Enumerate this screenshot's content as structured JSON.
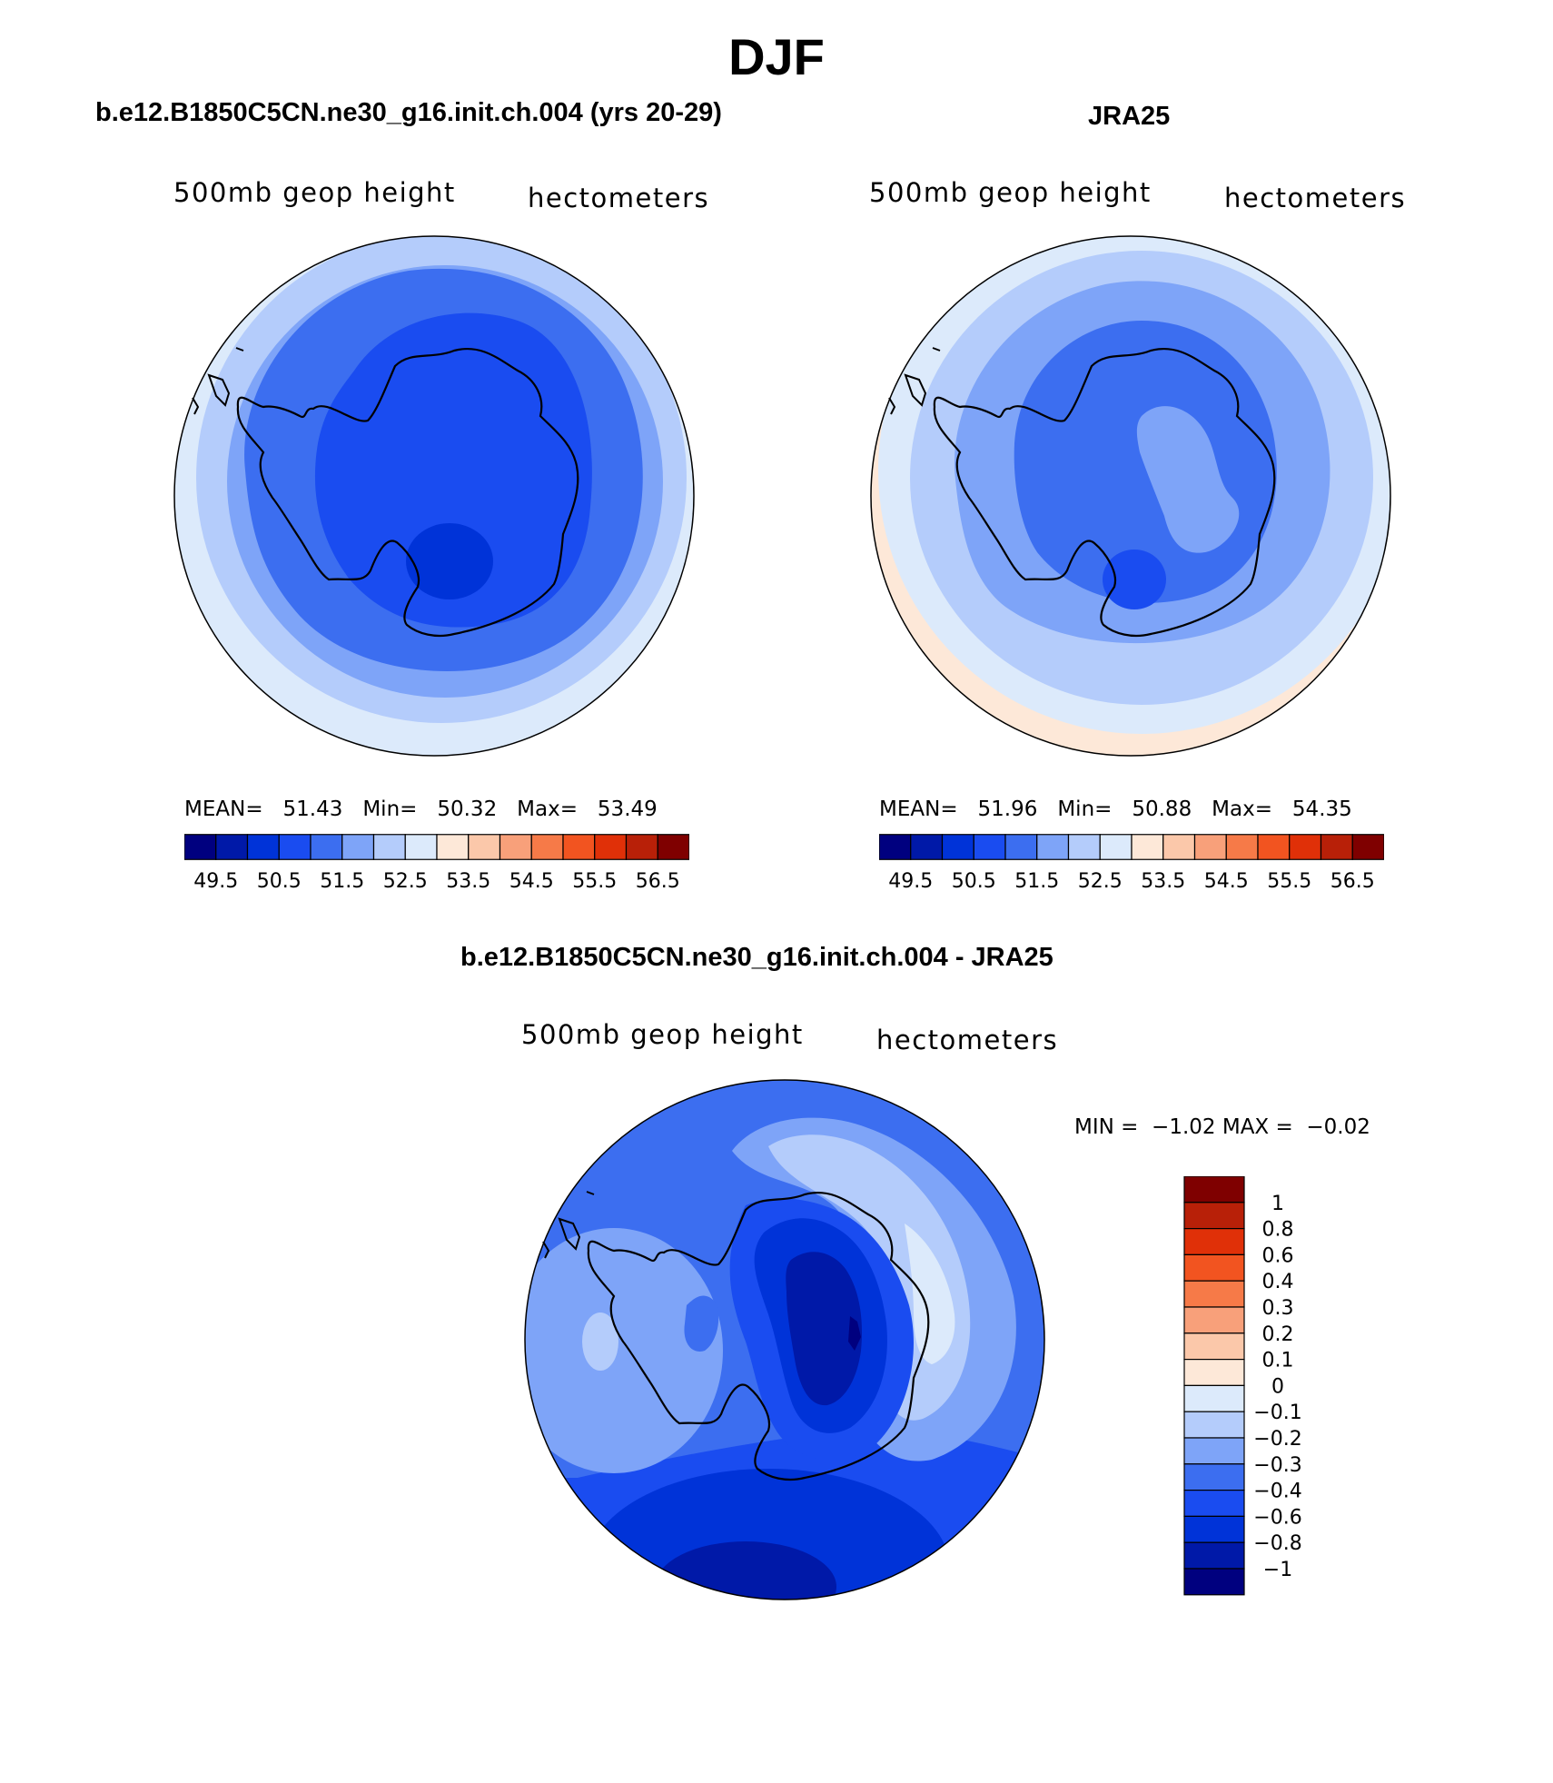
{
  "title": "DJF",
  "panels": [
    {
      "title": "b.e12.B1850C5CN.ne30_g16.init.ch.004 (yrs 20-29)",
      "variable": "500mb geop height",
      "units": "hectometers",
      "stats": {
        "mean_label": "MEAN=",
        "mean": "51.43",
        "min_label": "Min=",
        "min": "50.32",
        "max_label": "Max=",
        "max": "53.49"
      }
    },
    {
      "title": "JRA25",
      "variable": "500mb geop height",
      "units": "hectometers",
      "stats": {
        "mean_label": "MEAN=",
        "mean": "51.96",
        "min_label": "Min=",
        "min": "50.88",
        "max_label": "Max=",
        "max": "54.35"
      }
    },
    {
      "title": "b.e12.B1850C5CN.ne30_g16.init.ch.004 - JRA25",
      "variable": "500mb geop height",
      "units": "hectometers",
      "stats": {
        "min_label": "MIN =",
        "min": "−1.02",
        "max_label": "MAX =",
        "max": "−0.02"
      }
    }
  ],
  "colorbar_abs": {
    "ticks": [
      "49.5",
      "50.5",
      "51.5",
      "52.5",
      "53.5",
      "54.5",
      "55.5",
      "56.5"
    ],
    "colors": [
      "#00007f",
      "#0019a8",
      "#0033d8",
      "#1a4cf0",
      "#3c6ef0",
      "#7ea4f8",
      "#b4ccfb",
      "#dceafb",
      "#fde8d8",
      "#fbc8aa",
      "#f8a07a",
      "#f67a48",
      "#f25420",
      "#e03008",
      "#b82008",
      "#7f0000"
    ]
  },
  "colorbar_diff": {
    "labels": [
      "1",
      "0.8",
      "0.6",
      "0.4",
      "0.3",
      "0.2",
      "0.1",
      "0",
      "−0.1",
      "−0.2",
      "−0.3",
      "−0.4",
      "−0.6",
      "−0.8",
      "−1"
    ],
    "colors": [
      "#7f0000",
      "#b82008",
      "#e03008",
      "#f25420",
      "#f67a48",
      "#f8a07a",
      "#fbc8aa",
      "#fde8d8",
      "#dceafb",
      "#b4ccfb",
      "#7ea4f8",
      "#3c6ef0",
      "#1a4cf0",
      "#0033d8",
      "#0019a8",
      "#00007f"
    ]
  },
  "map_colors": {
    "ocean_outer_warm": "#fde8d8",
    "ring_1": "#dceafb",
    "ring_2": "#b4ccfb",
    "ring_3": "#7ea4f8",
    "ring_4": "#3c6ef0",
    "core": "#1a4cf0",
    "deep": "#0033d8",
    "deepest": "#0019a8",
    "coast": "#000000"
  }
}
